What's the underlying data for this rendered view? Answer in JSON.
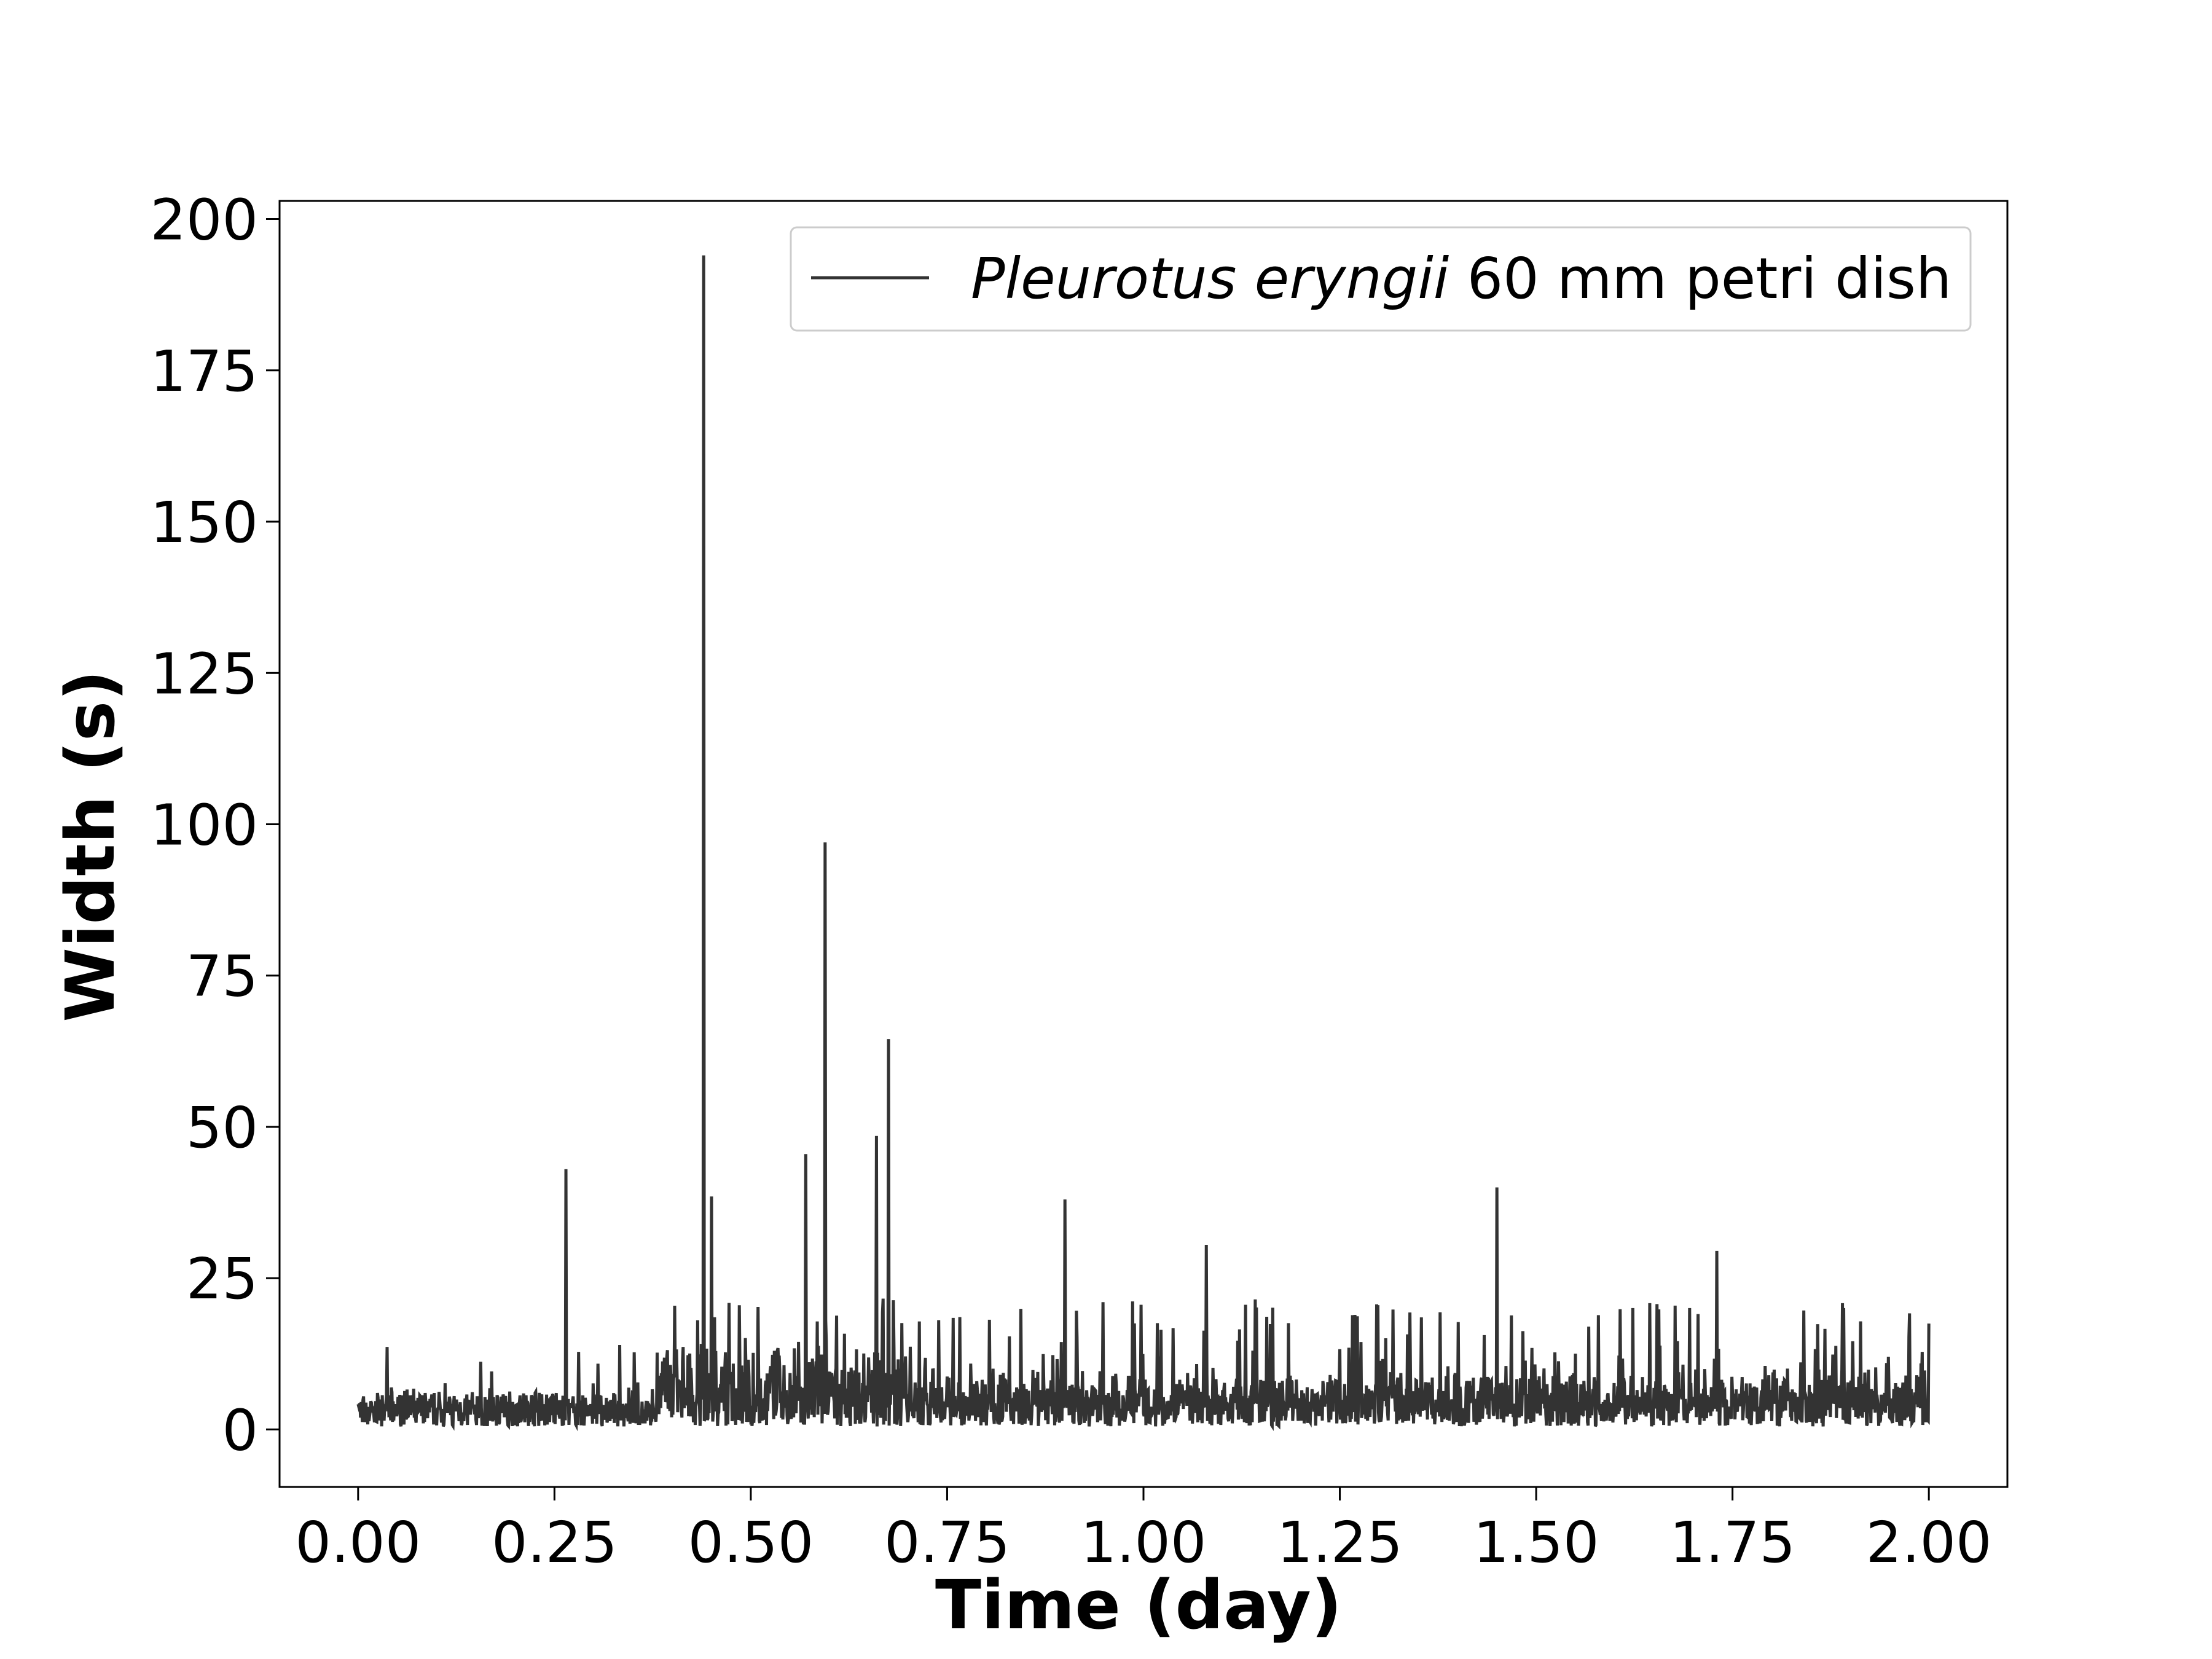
{
  "chart_data": {
    "type": "line",
    "xlabel": "Time (day)",
    "ylabel": "Width (s)",
    "xlim": [
      -0.1,
      2.1
    ],
    "ylim": [
      -9.5,
      203
    ],
    "xticks": [
      0.0,
      0.25,
      0.5,
      0.75,
      1.0,
      1.25,
      1.5,
      1.75,
      2.0
    ],
    "xtick_labels": [
      "0.00",
      "0.25",
      "0.50",
      "0.75",
      "1.00",
      "1.25",
      "1.50",
      "1.75",
      "2.00"
    ],
    "yticks": [
      0,
      25,
      50,
      75,
      100,
      125,
      150,
      175,
      200
    ],
    "ytick_labels": [
      "0",
      "25",
      "50",
      "75",
      "100",
      "125",
      "150",
      "175",
      "200"
    ],
    "grid": false,
    "legend": {
      "placement": "upper-right",
      "italic_part": "Pleurotus eryngii",
      "rest": " 60 mm petri dish"
    },
    "series": [
      {
        "name": "Pleurotus eryngii 60 mm petri dish",
        "color": "#333333",
        "baseline_range": [
          0.5,
          5
        ],
        "peaks": [
          {
            "x": 0.265,
            "y": 43
          },
          {
            "x": 0.44,
            "y": 194
          },
          {
            "x": 0.45,
            "y": 38.5
          },
          {
            "x": 0.57,
            "y": 45.5
          },
          {
            "x": 0.595,
            "y": 97
          },
          {
            "x": 0.66,
            "y": 48.5
          },
          {
            "x": 0.675,
            "y": 64.5
          },
          {
            "x": 0.9,
            "y": 38
          },
          {
            "x": 1.08,
            "y": 30.5
          },
          {
            "x": 1.45,
            "y": 40
          },
          {
            "x": 1.73,
            "y": 29.5
          },
          {
            "x": 2.0,
            "y": 17.5
          }
        ]
      }
    ]
  }
}
